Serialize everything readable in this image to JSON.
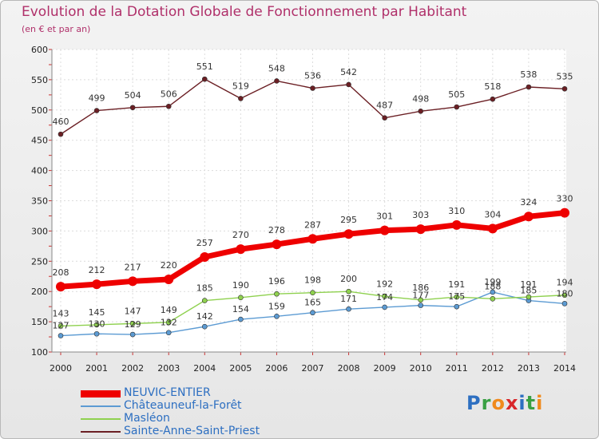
{
  "header": {
    "title": "Evolution de la Dotation Globale de Fonctionnement par Habitant",
    "subtitle": "(en € et par an)"
  },
  "logo": {
    "letters": [
      "P",
      "r",
      "o",
      "x",
      "i",
      "t",
      "i"
    ],
    "colors": [
      "#2d6fc1",
      "#3aa043",
      "#f08a1c",
      "#d8262a",
      "#2d6fc1",
      "#3aa043",
      "#f08a1c"
    ]
  },
  "chart_data": {
    "type": "line",
    "title": "Evolution de la Dotation Globale de Fonctionnement par Habitant",
    "subtitle": "(en € et par an)",
    "x": [
      "2000",
      "2001",
      "2002",
      "2003",
      "2004",
      "2005",
      "2006",
      "2007",
      "2008",
      "2009",
      "2010",
      "2011",
      "2012",
      "2013",
      "2014"
    ],
    "ylim": [
      100,
      600
    ],
    "yticks": [
      100,
      150,
      200,
      250,
      300,
      350,
      400,
      450,
      500,
      550,
      600
    ],
    "grid": true,
    "legend_position": "bottom-left",
    "series": [
      {
        "name": "NEUVIC-ENTIER",
        "color": "#ee0000",
        "values": [
          208,
          212,
          217,
          220,
          257,
          270,
          278,
          287,
          295,
          301,
          303,
          310,
          304,
          324,
          330
        ]
      },
      {
        "name": "Châteauneuf-la-Forêt",
        "color": "#5c9bd3",
        "values": [
          127,
          130,
          129,
          132,
          142,
          154,
          159,
          165,
          171,
          174,
          177,
          175,
          199,
          185,
          180
        ]
      },
      {
        "name": "Masléon",
        "color": "#8fd14f",
        "values": [
          143,
          145,
          147,
          149,
          185,
          190,
          196,
          198,
          200,
          192,
          186,
          191,
          188,
          191,
          194
        ]
      },
      {
        "name": "Sainte-Anne-Saint-Priest",
        "color": "#6b1f24",
        "values": [
          460,
          499,
          504,
          506,
          551,
          519,
          548,
          536,
          542,
          487,
          498,
          505,
          518,
          538,
          535
        ]
      }
    ]
  }
}
